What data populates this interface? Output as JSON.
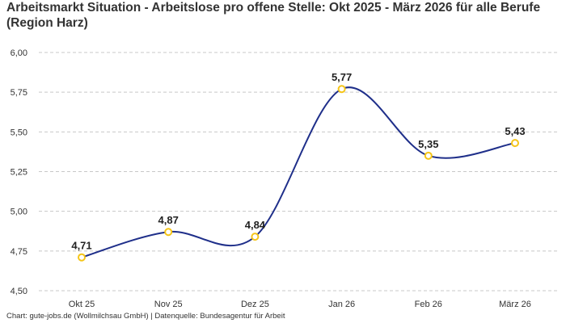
{
  "chart_data": {
    "type": "line",
    "title": "Arbeitsmarkt Situation - Arbeitslose pro offene Stelle: Okt 2025 - März 2026 für alle Berufe (Region Harz)",
    "categories": [
      "Okt 25",
      "Nov 25",
      "Dez 25",
      "Jan 26",
      "Feb 26",
      "März 26"
    ],
    "values": [
      4.71,
      4.87,
      4.84,
      5.77,
      5.35,
      5.43
    ],
    "value_labels": [
      "4,71",
      "4,87",
      "4,84",
      "5,77",
      "5,35",
      "5,43"
    ],
    "ylim": [
      4.5,
      6.0
    ],
    "yticks": [
      4.5,
      4.75,
      5.0,
      5.25,
      5.5,
      5.75,
      6.0
    ],
    "ytick_labels": [
      "4,50",
      "4,75",
      "5,00",
      "5,25",
      "5,50",
      "5,75",
      "6,00"
    ],
    "grid": true,
    "line_color": "#1f2f8a",
    "marker_color": "#f5c518",
    "source": "Chart: gute-jobs.de (Wollmilchsau GmbH) | Datenquelle: Bundesagentur für Arbeit"
  }
}
